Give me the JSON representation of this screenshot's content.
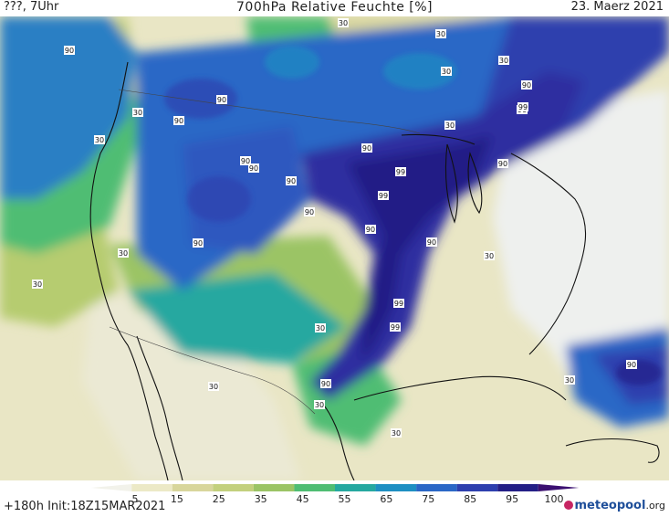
{
  "header": {
    "left": "???, 7Uhr",
    "title": "700hPa Relative Feuchte [%]",
    "date": "23. Maerz 2021"
  },
  "footer": {
    "run_info": "+180h  Init:18Z15MAR2021",
    "logo_primary": "meteopool",
    "logo_suffix": ".org"
  },
  "legend": {
    "labels": [
      "5",
      "15",
      "25",
      "35",
      "45",
      "55",
      "65",
      "75",
      "85",
      "95",
      "100"
    ],
    "colors": [
      "#f2f2ea",
      "#ece9c6",
      "#d8d69c",
      "#c3d07d",
      "#9bc465",
      "#4fbd73",
      "#25a8a0",
      "#1e8fc2",
      "#2a67c6",
      "#2d3fae",
      "#231f86",
      "#3b1071"
    ]
  },
  "contour_labels": [
    {
      "text": "90"
    },
    {
      "text": "90"
    },
    {
      "text": "90"
    },
    {
      "text": "90"
    },
    {
      "text": "90"
    },
    {
      "text": "90"
    },
    {
      "text": "90"
    },
    {
      "text": "90"
    },
    {
      "text": "90"
    },
    {
      "text": "90"
    },
    {
      "text": "90"
    },
    {
      "text": "90"
    },
    {
      "text": "90"
    },
    {
      "text": "90"
    },
    {
      "text": "90"
    },
    {
      "text": "90"
    },
    {
      "text": "99"
    },
    {
      "text": "99"
    },
    {
      "text": "99"
    },
    {
      "text": "99"
    },
    {
      "text": "99"
    },
    {
      "text": "30"
    },
    {
      "text": "30"
    },
    {
      "text": "30"
    },
    {
      "text": "30"
    },
    {
      "text": "30"
    },
    {
      "text": "30"
    },
    {
      "text": "30"
    },
    {
      "text": "30"
    },
    {
      "text": "30"
    },
    {
      "text": "30"
    },
    {
      "text": "30"
    },
    {
      "text": "30"
    },
    {
      "text": "30"
    },
    {
      "text": "30"
    },
    {
      "text": "30"
    }
  ]
}
